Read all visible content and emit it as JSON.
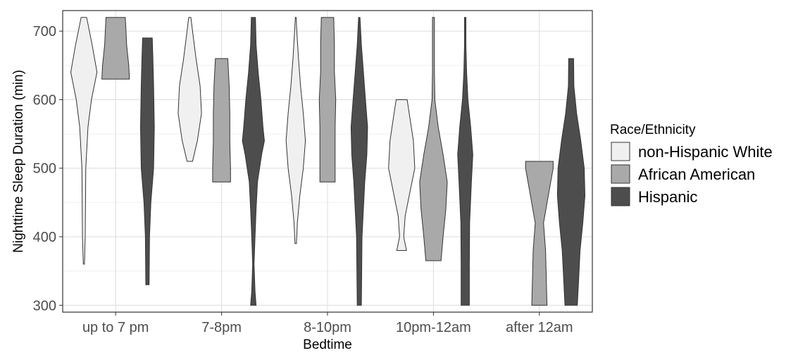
{
  "chart_data": {
    "type": "violin",
    "xlabel": "Bedtime",
    "ylabel": "Nighttime Sleep Duration (min)",
    "categories": [
      "up to 7 pm",
      "7-8pm",
      "8-10pm",
      "10pm-12am",
      "after 12am"
    ],
    "ylim": [
      290,
      730
    ],
    "yticks": [
      300,
      400,
      500,
      600,
      700
    ],
    "grid": true,
    "legend": {
      "title": "Race/Ethnicity",
      "placement": "right"
    },
    "series": [
      {
        "name": "non-Hispanic White",
        "color": "#f0f0f0",
        "violins": [
          {
            "y": [
              360,
              400,
              450,
              500,
              560,
              600,
              640,
              680,
              720
            ],
            "w": [
              0.04,
              0.1,
              0.12,
              0.14,
              0.3,
              0.55,
              0.95,
              0.6,
              0.2
            ]
          },
          {
            "y": [
              510,
              540,
              580,
              620,
              660,
              700,
              720
            ],
            "w": [
              0.2,
              0.55,
              0.85,
              0.75,
              0.45,
              0.2,
              0.08
            ]
          },
          {
            "y": [
              390,
              420,
              460,
              500,
              540,
              580,
              620,
              660,
              700,
              720
            ],
            "w": [
              0.05,
              0.12,
              0.3,
              0.55,
              0.7,
              0.55,
              0.35,
              0.2,
              0.08,
              0.03
            ]
          },
          {
            "y": [
              380,
              400,
              430,
              460,
              500,
              540,
              580,
              600
            ],
            "w": [
              0.35,
              0.15,
              0.25,
              0.55,
              0.95,
              0.85,
              0.55,
              0.4
            ]
          },
          null
        ]
      },
      {
        "name": "African American",
        "color": "#a9a9a9",
        "violins": [
          {
            "y": [
              630,
              650,
              680,
              700,
              720
            ],
            "w": [
              1.0,
              0.95,
              0.8,
              0.75,
              0.7
            ]
          },
          {
            "y": [
              480,
              500,
              540,
              580,
              620,
              660
            ],
            "w": [
              0.65,
              0.65,
              0.6,
              0.6,
              0.55,
              0.45
            ]
          },
          {
            "y": [
              480,
              520,
              560,
              600,
              640,
              680,
              720
            ],
            "w": [
              0.55,
              0.55,
              0.55,
              0.6,
              0.5,
              0.5,
              0.45
            ]
          },
          {
            "y": [
              365,
              400,
              440,
              480,
              520,
              560,
              600,
              640,
              680,
              720
            ],
            "w": [
              0.55,
              0.7,
              0.9,
              1.0,
              0.7,
              0.35,
              0.1,
              0.07,
              0.07,
              0.07
            ]
          },
          {
            "y": [
              300,
              340,
              380,
              420,
              460,
              500,
              510
            ],
            "w": [
              0.55,
              0.5,
              0.45,
              0.3,
              0.65,
              1.0,
              1.0
            ]
          }
        ]
      },
      {
        "name": "Hispanic",
        "color": "#4d4d4d",
        "violins": [
          {
            "y": [
              330,
              400,
              450,
              500,
              560,
              620,
              660,
              690
            ],
            "w": [
              0.12,
              0.15,
              0.25,
              0.45,
              0.5,
              0.45,
              0.4,
              0.35
            ]
          },
          {
            "y": [
              300,
              320,
              360,
              400,
              440,
              480,
              520,
              540,
              560,
              600,
              640,
              680,
              720
            ],
            "w": [
              0.2,
              0.12,
              0.05,
              0.12,
              0.2,
              0.3,
              0.6,
              0.8,
              0.7,
              0.55,
              0.35,
              0.2,
              0.15
            ]
          },
          {
            "y": [
              300,
              400,
              480,
              520,
              560,
              600,
              640,
              680,
              720
            ],
            "w": [
              0.15,
              0.2,
              0.4,
              0.55,
              0.6,
              0.45,
              0.3,
              0.15,
              0.05
            ]
          },
          {
            "y": [
              300,
              360,
              420,
              480,
              520,
              560,
              600,
              640,
              680,
              720
            ],
            "w": [
              0.3,
              0.3,
              0.32,
              0.45,
              0.55,
              0.4,
              0.2,
              0.1,
              0.05,
              0.05
            ]
          },
          {
            "y": [
              300,
              340,
              380,
              420,
              460,
              500,
              540,
              580,
              620,
              660
            ],
            "w": [
              0.45,
              0.55,
              0.65,
              0.85,
              1.0,
              0.95,
              0.7,
              0.4,
              0.2,
              0.18
            ]
          }
        ]
      }
    ]
  }
}
